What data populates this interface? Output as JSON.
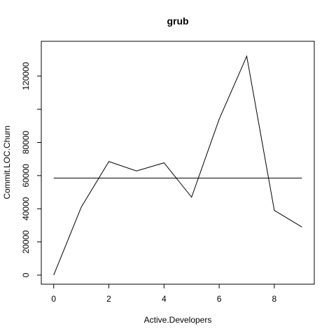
{
  "chart_data": {
    "type": "line",
    "title": "grub",
    "xlabel": "Active.Developers",
    "ylabel": "Commit.LOC.Churn",
    "x": [
      0,
      1,
      2,
      3,
      4,
      5,
      6,
      7,
      8,
      9
    ],
    "y": [
      0,
      41000,
      68500,
      62800,
      67700,
      47000,
      94000,
      132000,
      39000,
      29000
    ],
    "reference_line": {
      "y": 58500
    },
    "xlim": [
      -0.45,
      9.45
    ],
    "ylim": [
      -5500,
      141000
    ],
    "x_ticks": [
      0,
      2,
      4,
      6,
      8
    ],
    "x_tick_labels": [
      "0",
      "2",
      "4",
      "6",
      "8"
    ],
    "y_ticks": [
      0,
      20000,
      40000,
      60000,
      80000,
      100000,
      120000
    ],
    "y_tick_labels": [
      "0",
      "20000",
      "40000",
      "60000",
      "80000",
      "",
      "120000"
    ],
    "grid": false,
    "legend": "none"
  }
}
